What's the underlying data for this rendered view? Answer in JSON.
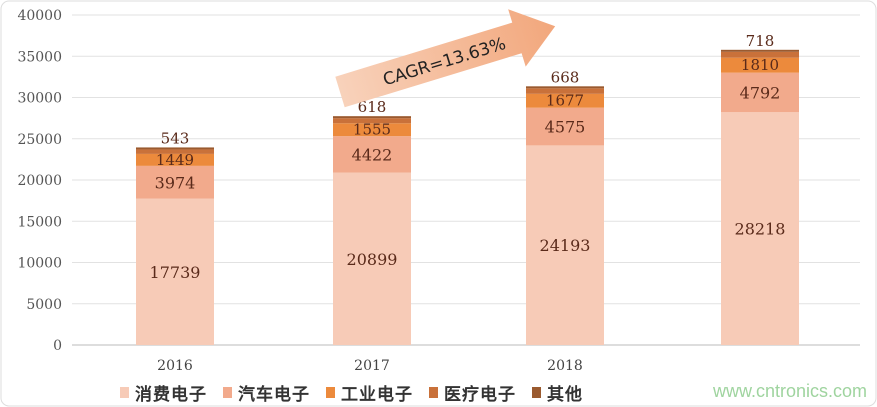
{
  "chart_data": {
    "type": "bar",
    "stacked": true,
    "categories": [
      "2016",
      "2017",
      "2018",
      ""
    ],
    "series": [
      {
        "name": "消费电子",
        "color": "#f7cbb7",
        "values": [
          17739,
          20899,
          24193,
          28218
        ]
      },
      {
        "name": "汽车电子",
        "color": "#f2aa8c",
        "values": [
          3974,
          4422,
          4575,
          4792
        ]
      },
      {
        "name": "工业电子",
        "color": "#ec8a3c",
        "values": [
          1449,
          1555,
          1677,
          1810
        ]
      },
      {
        "name": "医疗电子",
        "color": "#c9713a",
        "values": [
          543,
          618,
          668,
          718
        ]
      },
      {
        "name": "其他",
        "color": "#9a5a2f",
        "values": [
          null,
          null,
          null,
          null
        ]
      }
    ],
    "ylim": [
      0,
      40000
    ],
    "yticks": [
      0,
      5000,
      10000,
      15000,
      20000,
      25000,
      30000,
      35000,
      40000
    ],
    "grid": true,
    "legend": "bottom",
    "annotation": "CAGR=13.63%"
  },
  "watermark": "www.cntronics.com"
}
